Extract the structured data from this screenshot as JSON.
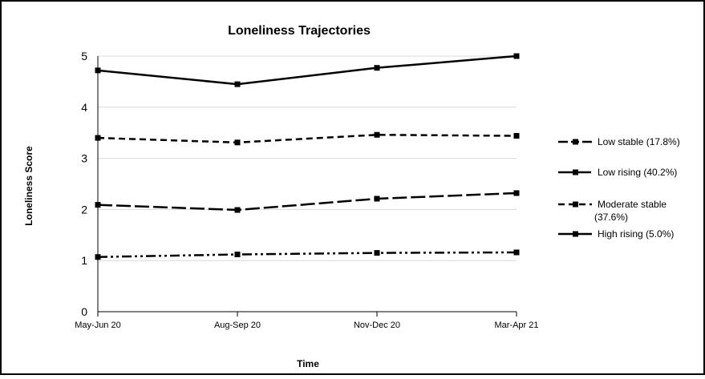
{
  "chart_data": {
    "type": "line",
    "title": "Loneliness Trajectories",
    "xlabel": "Time",
    "ylabel": "Loneliness Score",
    "categories": [
      "May-Jun 20",
      "Aug-Sep 20",
      "Nov-Dec 20",
      "Mar-Apr 21"
    ],
    "ylim": [
      0,
      5
    ],
    "yticks": [
      "0",
      "1",
      "2",
      "3",
      "4",
      "5"
    ],
    "grid": true,
    "legend_position": "right",
    "series": [
      {
        "name": "Low stable (17.8%)",
        "values": [
          1.07,
          1.12,
          1.15,
          1.16
        ],
        "dash": "dash-dot-dot"
      },
      {
        "name": "Low rising (40.2%)",
        "values": [
          2.09,
          1.99,
          2.21,
          2.32
        ],
        "dash": "long-dash"
      },
      {
        "name": "Moderate stable (37.6%)",
        "values": [
          3.4,
          3.31,
          3.46,
          3.44
        ],
        "dash": "dash"
      },
      {
        "name": "High rising (5.0%)",
        "values": [
          4.72,
          4.45,
          4.77,
          5.0
        ],
        "dash": "solid"
      }
    ],
    "legend_lines": [
      [
        "Low stable (17.8%)"
      ],
      [
        "Low rising (40.2%)"
      ],
      [
        "Moderate stable",
        "(37.6%)"
      ],
      [
        "High rising (5.0%)"
      ]
    ],
    "line_color": "#000000",
    "grid_color": "#d9d9d9"
  }
}
